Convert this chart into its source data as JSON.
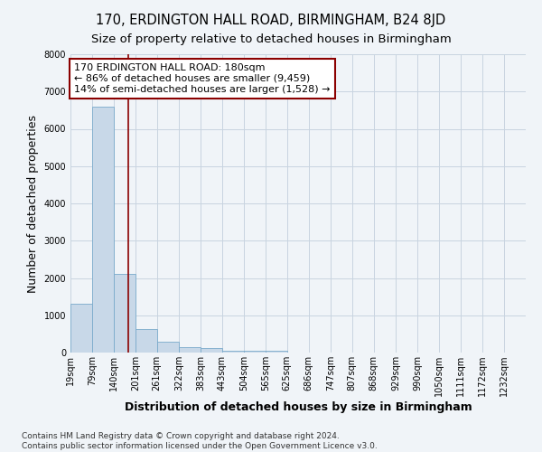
{
  "title": "170, ERDINGTON HALL ROAD, BIRMINGHAM, B24 8JD",
  "subtitle": "Size of property relative to detached houses in Birmingham",
  "xlabel": "Distribution of detached houses by size in Birmingham",
  "ylabel": "Number of detached properties",
  "footnote1": "Contains HM Land Registry data © Crown copyright and database right 2024.",
  "footnote2": "Contains public sector information licensed under the Open Government Licence v3.0.",
  "bin_labels": [
    "19sqm",
    "79sqm",
    "140sqm",
    "201sqm",
    "261sqm",
    "322sqm",
    "383sqm",
    "443sqm",
    "504sqm",
    "565sqm",
    "625sqm",
    "686sqm",
    "747sqm",
    "807sqm",
    "868sqm",
    "929sqm",
    "990sqm",
    "1050sqm",
    "1111sqm",
    "1172sqm",
    "1232sqm"
  ],
  "bin_edges": [
    19,
    79,
    140,
    201,
    261,
    322,
    383,
    443,
    504,
    565,
    625,
    686,
    747,
    807,
    868,
    929,
    990,
    1050,
    1111,
    1172,
    1232,
    1293
  ],
  "bar_values": [
    1300,
    6600,
    2100,
    630,
    300,
    150,
    110,
    60,
    55,
    50,
    10,
    5,
    3,
    2,
    2,
    1,
    1,
    0,
    0,
    0,
    0
  ],
  "bar_color": "#c8d8e8",
  "bar_edge_color": "#7aaacb",
  "property_line_x": 180,
  "property_line_color": "#8b0000",
  "annotation_line1": "170 ERDINGTON HALL ROAD: 180sqm",
  "annotation_line2": "← 86% of detached houses are smaller (9,459)",
  "annotation_line3": "14% of semi-detached houses are larger (1,528) →",
  "annotation_box_color": "#ffffff",
  "annotation_box_edge_color": "#8b0000",
  "ylim": [
    0,
    8000
  ],
  "yticks": [
    0,
    1000,
    2000,
    3000,
    4000,
    5000,
    6000,
    7000,
    8000
  ],
  "bg_color": "#f0f4f8",
  "plot_bg_color": "#f0f4f8",
  "grid_color": "#c8d4e0",
  "title_fontsize": 10.5,
  "subtitle_fontsize": 9.5,
  "axis_label_fontsize": 9,
  "tick_fontsize": 7,
  "annotation_fontsize": 8,
  "footnote_fontsize": 6.5
}
